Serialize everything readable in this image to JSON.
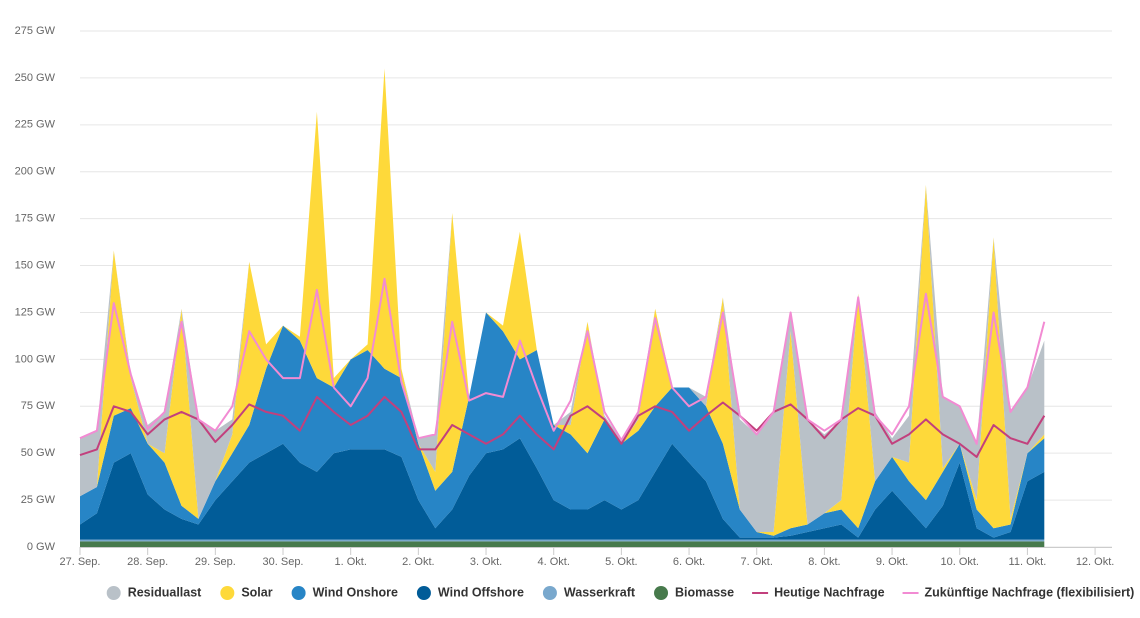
{
  "chart_data": {
    "type": "stacked-area",
    "x": [
      0,
      0.25,
      0.5,
      0.75,
      1,
      1.25,
      1.5,
      1.75,
      2,
      2.25,
      2.5,
      2.75,
      3,
      3.25,
      3.5,
      3.75,
      4,
      4.25,
      4.5,
      4.75,
      5,
      5.25,
      5.5,
      5.75,
      6,
      6.25,
      6.5,
      6.75,
      7,
      7.25,
      7.5,
      7.75,
      8,
      8.25,
      8.5,
      8.75,
      9,
      9.25,
      9.5,
      9.75,
      10,
      10.25,
      10.5,
      10.75,
      11,
      11.25,
      11.5,
      11.75,
      12,
      12.25,
      12.5,
      12.75,
      13,
      13.25,
      13.5,
      13.75,
      14,
      14.25
    ],
    "xlim": [
      0,
      15.25
    ],
    "xticks": [
      {
        "value": 0,
        "label": "27. Sep."
      },
      {
        "value": 1,
        "label": "28. Sep."
      },
      {
        "value": 2,
        "label": "29. Sep."
      },
      {
        "value": 3,
        "label": "30. Sep."
      },
      {
        "value": 4,
        "label": "1. Okt."
      },
      {
        "value": 5,
        "label": "2. Okt."
      },
      {
        "value": 6,
        "label": "3. Okt."
      },
      {
        "value": 7,
        "label": "4. Okt."
      },
      {
        "value": 8,
        "label": "5. Okt."
      },
      {
        "value": 9,
        "label": "6. Okt."
      },
      {
        "value": 10,
        "label": "7. Okt."
      },
      {
        "value": 11,
        "label": "8. Okt."
      },
      {
        "value": 12,
        "label": "9. Okt."
      },
      {
        "value": 13,
        "label": "10. Okt."
      },
      {
        "value": 14,
        "label": "11. Okt."
      },
      {
        "value": 15,
        "label": "12. Okt."
      }
    ],
    "ylim": [
      0,
      275
    ],
    "yticks": [
      {
        "value": 0,
        "label": "0 GW"
      },
      {
        "value": 25,
        "label": "25 GW"
      },
      {
        "value": 50,
        "label": "50 GW"
      },
      {
        "value": 75,
        "label": "75 GW"
      },
      {
        "value": 100,
        "label": "100 GW"
      },
      {
        "value": 125,
        "label": "125 GW"
      },
      {
        "value": 150,
        "label": "150 GW"
      },
      {
        "value": 175,
        "label": "175 GW"
      },
      {
        "value": 200,
        "label": "200 GW"
      },
      {
        "value": 225,
        "label": "225 GW"
      },
      {
        "value": 250,
        "label": "250 GW"
      },
      {
        "value": 275,
        "label": "275 GW"
      }
    ],
    "grid": true,
    "series": [
      {
        "name": "Residuallast",
        "type": "area",
        "color": "#b9c1c8",
        "values": [
          31,
          30,
          0,
          2,
          10,
          22,
          0,
          53,
          27,
          8,
          0,
          0,
          0,
          0,
          0,
          0,
          0,
          0,
          0,
          0,
          3,
          20,
          0,
          0,
          0,
          0,
          0,
          0,
          0,
          7,
          0,
          2,
          2,
          4,
          0,
          0,
          0,
          5,
          0,
          48,
          52,
          64,
          10,
          56,
          42,
          43,
          0,
          37,
          10,
          25,
          0,
          38,
          20,
          30,
          0,
          57,
          35,
          50
        ]
      },
      {
        "name": "Solar",
        "type": "area",
        "color": "#fed93a",
        "values": [
          0,
          0,
          88,
          16,
          0,
          5,
          105,
          0,
          0,
          10,
          87,
          13,
          0,
          2,
          142,
          5,
          0,
          3,
          160,
          5,
          0,
          10,
          138,
          0,
          0,
          3,
          68,
          0,
          0,
          5,
          70,
          0,
          0,
          6,
          52,
          0,
          0,
          0,
          78,
          0,
          0,
          2,
          105,
          0,
          0,
          5,
          125,
          0,
          0,
          10,
          168,
          2,
          0,
          5,
          155,
          3,
          0,
          2
        ]
      },
      {
        "name": "Wind Onshore",
        "type": "area",
        "color": "#2785c6",
        "values": [
          15,
          14,
          25,
          24,
          27,
          25,
          7,
          3,
          10,
          15,
          20,
          45,
          63,
          65,
          50,
          35,
          48,
          53,
          43,
          42,
          30,
          20,
          20,
          42,
          75,
          63,
          42,
          63,
          40,
          40,
          30,
          43,
          35,
          37,
          35,
          30,
          40,
          40,
          40,
          15,
          3,
          1,
          4,
          4,
          8,
          8,
          5,
          15,
          18,
          15,
          15,
          18,
          10,
          10,
          5,
          4,
          15,
          18
        ]
      },
      {
        "name": "Wind Offshore",
        "type": "area",
        "color": "#015c98",
        "values": [
          8,
          14,
          41,
          46,
          24,
          16,
          11,
          8,
          21,
          31,
          41,
          46,
          51,
          41,
          36,
          46,
          48,
          48,
          48,
          44,
          21,
          6,
          16,
          34,
          46,
          48,
          54,
          38,
          21,
          16,
          16,
          21,
          16,
          21,
          36,
          51,
          41,
          31,
          11,
          1,
          1,
          1,
          2,
          4,
          6,
          8,
          1,
          16,
          26,
          16,
          6,
          18,
          41,
          6,
          1,
          4,
          31,
          36
        ]
      },
      {
        "name": "Wasserkraft",
        "type": "area",
        "color": "#79a8cd",
        "values": [
          1,
          1,
          1,
          1,
          1,
          1,
          1,
          1,
          1,
          1,
          1,
          1,
          1,
          1,
          1,
          1,
          1,
          1,
          1,
          1,
          1,
          1,
          1,
          1,
          1,
          1,
          1,
          1,
          1,
          1,
          1,
          1,
          1,
          1,
          1,
          1,
          1,
          1,
          1,
          1,
          1,
          1,
          1,
          1,
          1,
          1,
          1,
          1,
          1,
          1,
          1,
          1,
          1,
          1,
          1,
          1,
          1,
          1
        ]
      },
      {
        "name": "Biomasse",
        "type": "area",
        "color": "#477a4c",
        "values": [
          3,
          3,
          3,
          3,
          3,
          3,
          3,
          3,
          3,
          3,
          3,
          3,
          3,
          3,
          3,
          3,
          3,
          3,
          3,
          3,
          3,
          3,
          3,
          3,
          3,
          3,
          3,
          3,
          3,
          3,
          3,
          3,
          3,
          3,
          3,
          3,
          3,
          3,
          3,
          3,
          3,
          3,
          3,
          3,
          3,
          3,
          3,
          3,
          3,
          3,
          3,
          3,
          3,
          3,
          3,
          3,
          3,
          3
        ]
      },
      {
        "name": "Heutige Nachfrage",
        "type": "line",
        "color": "#c2407d",
        "values": [
          49,
          52,
          75,
          72,
          60,
          68,
          72,
          68,
          56,
          65,
          76,
          72,
          70,
          62,
          80,
          72,
          65,
          70,
          80,
          72,
          52,
          52,
          65,
          60,
          55,
          60,
          70,
          60,
          52,
          70,
          75,
          68,
          55,
          70,
          75,
          72,
          62,
          70,
          77,
          70,
          62,
          72,
          76,
          68,
          58,
          68,
          74,
          70,
          55,
          60,
          68,
          60,
          55,
          48,
          65,
          58,
          55,
          70
        ]
      },
      {
        "name": "Zukünftige Nachfrage (flexibilisiert)",
        "type": "line",
        "color": "#f28bd3",
        "values": [
          58,
          62,
          130,
          92,
          63,
          72,
          120,
          68,
          62,
          75,
          115,
          100,
          90,
          90,
          137,
          85,
          75,
          90,
          143,
          88,
          58,
          60,
          120,
          78,
          82,
          80,
          110,
          85,
          62,
          78,
          115,
          72,
          57,
          72,
          122,
          85,
          75,
          80,
          125,
          70,
          60,
          72,
          125,
          68,
          62,
          68,
          133,
          70,
          60,
          75,
          135,
          80,
          75,
          55,
          125,
          72,
          85,
          120
        ]
      }
    ]
  }
}
